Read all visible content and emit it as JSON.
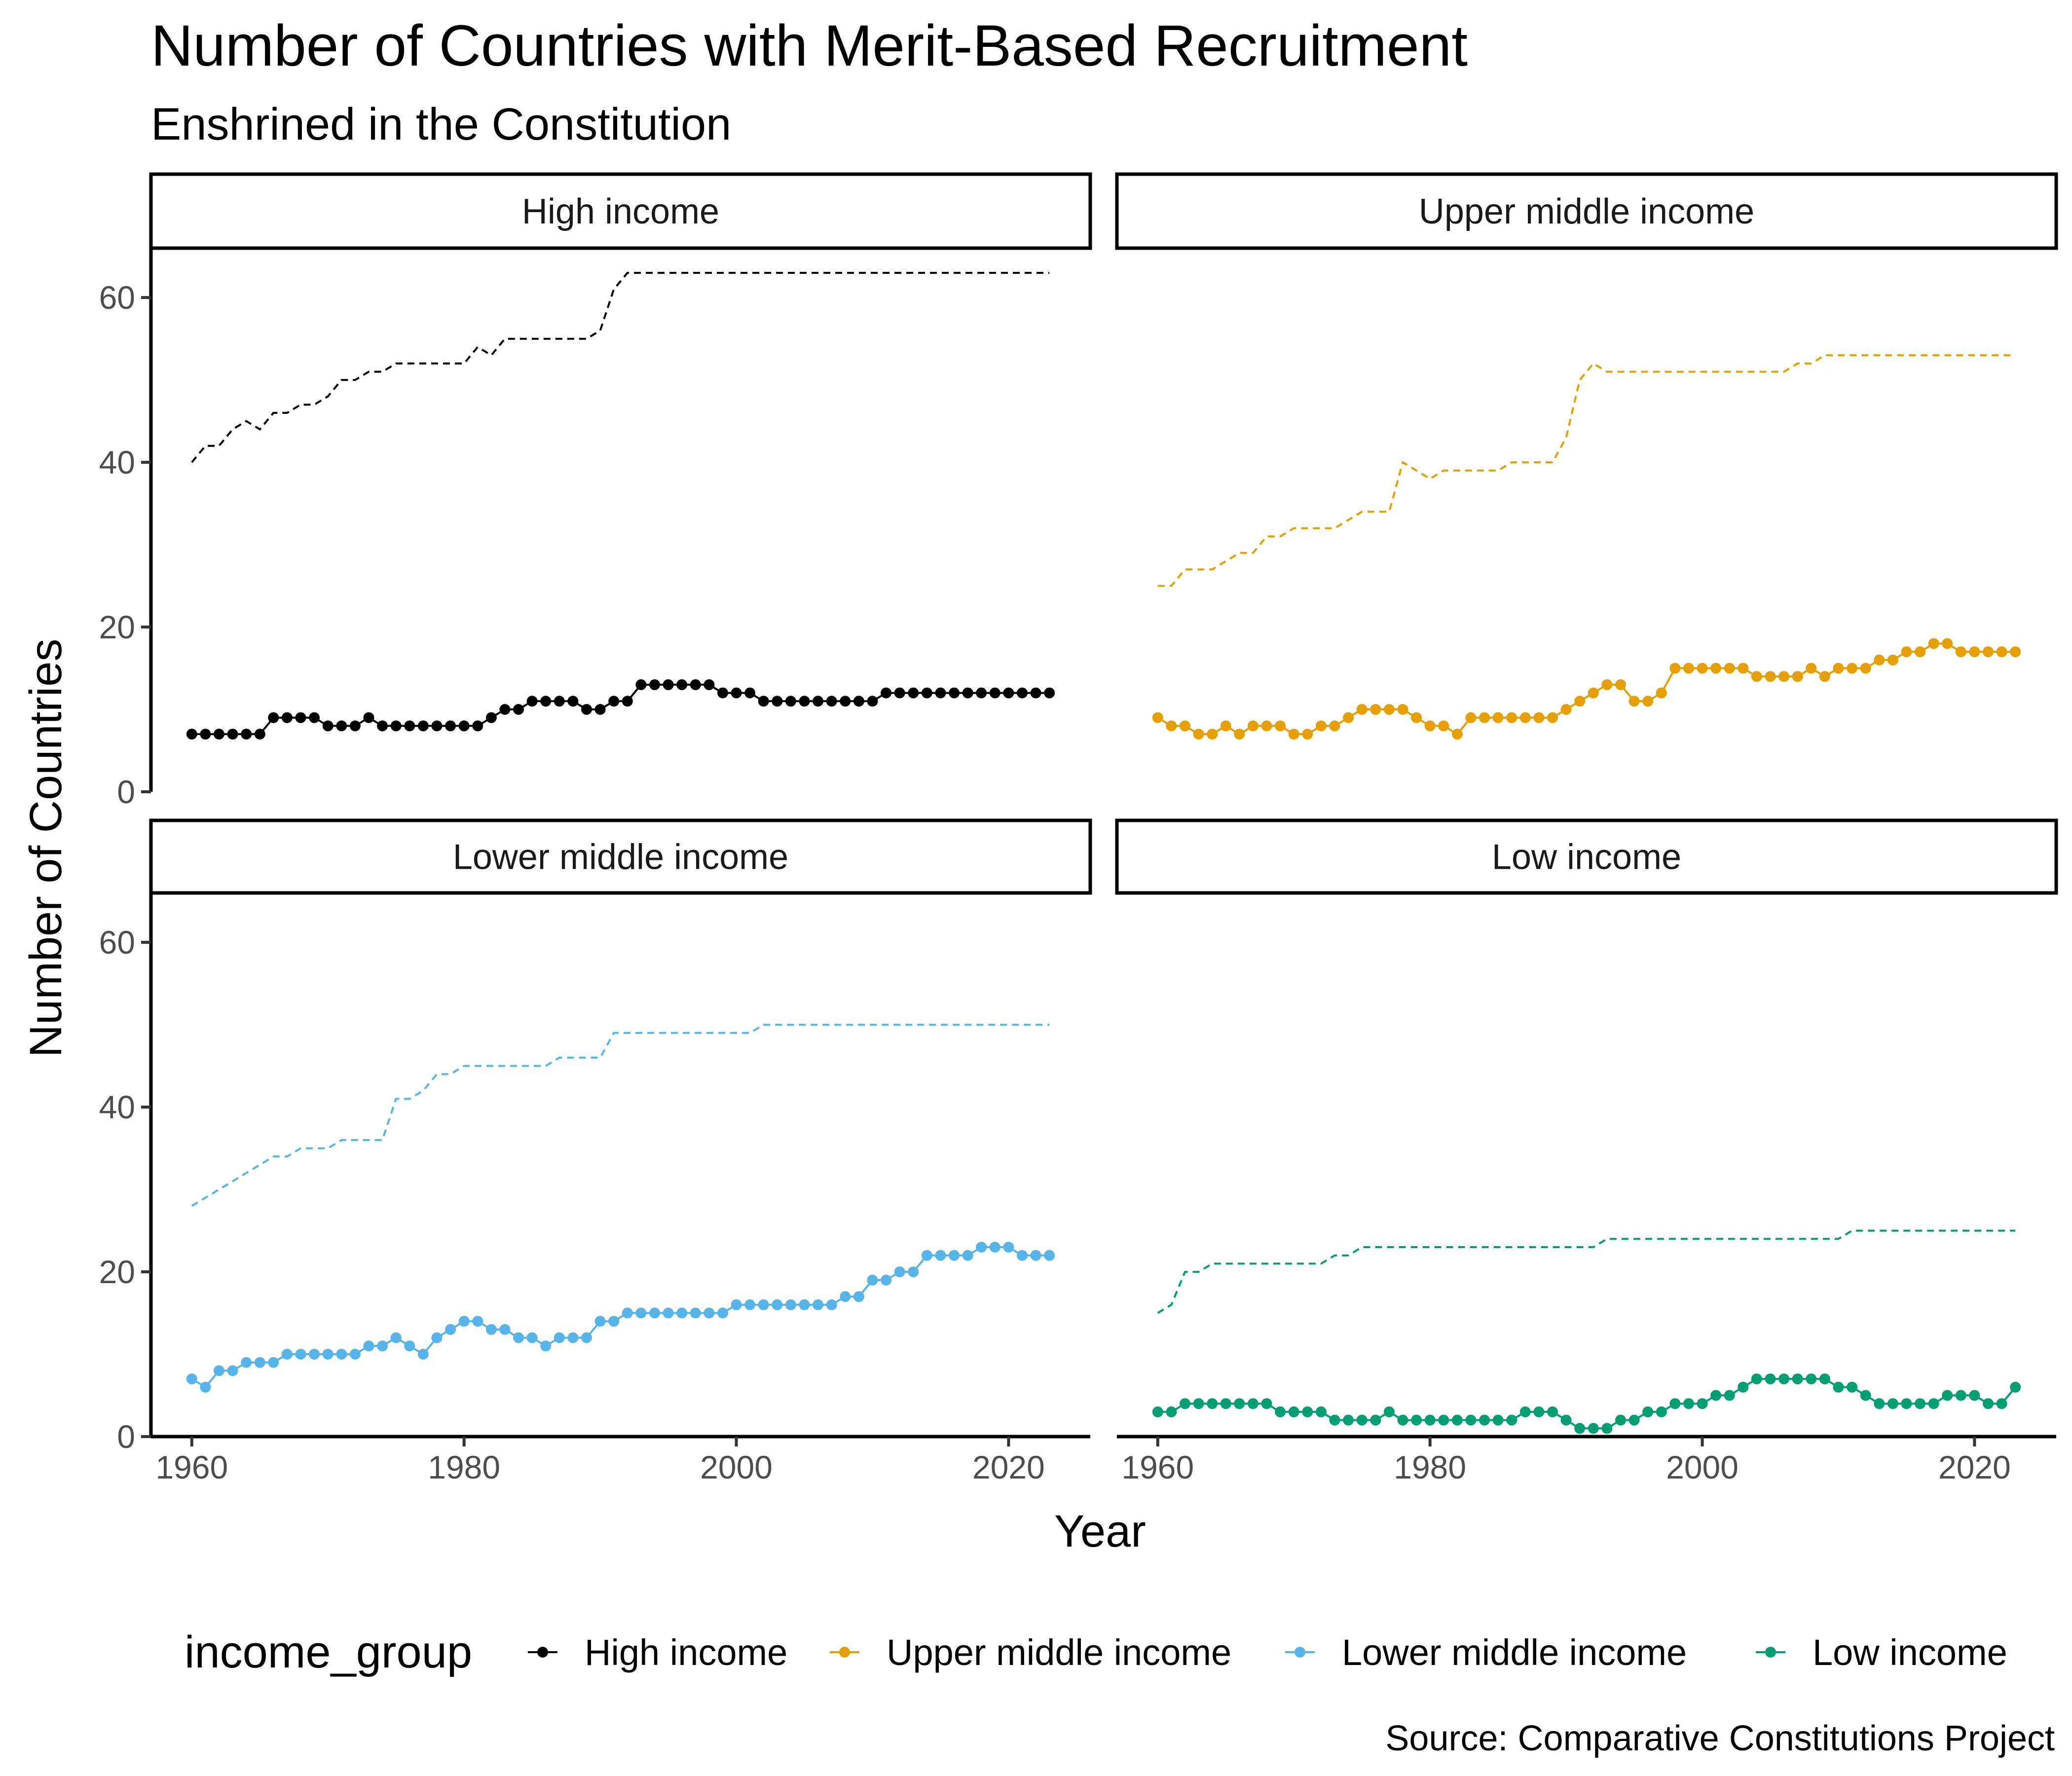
{
  "chart_data": {
    "type": "line",
    "title": "Number of Countries with Merit-Based Recruitment",
    "subtitle": "Enshrined in the Constitution",
    "xlabel": "Year",
    "ylabel": "Number of Countries",
    "caption": "Source: Comparative Constitutions Project",
    "legend_title": "income_group",
    "legend_position": "bottom",
    "grid": false,
    "xlim": [
      1957,
      2026
    ],
    "ylim": [
      0,
      66
    ],
    "x_ticks": [
      1960,
      1980,
      2000,
      2020
    ],
    "y_ticks": [
      0,
      20,
      40,
      60
    ],
    "x": [
      1960,
      1961,
      1962,
      1963,
      1964,
      1965,
      1966,
      1967,
      1968,
      1969,
      1970,
      1971,
      1972,
      1973,
      1974,
      1975,
      1976,
      1977,
      1978,
      1979,
      1980,
      1981,
      1982,
      1983,
      1984,
      1985,
      1986,
      1987,
      1988,
      1989,
      1990,
      1991,
      1992,
      1993,
      1994,
      1995,
      1996,
      1997,
      1998,
      1999,
      2000,
      2001,
      2002,
      2003,
      2004,
      2005,
      2006,
      2007,
      2008,
      2009,
      2010,
      2011,
      2012,
      2013,
      2014,
      2015,
      2016,
      2017,
      2018,
      2019,
      2020,
      2021,
      2022,
      2023
    ],
    "series": [
      {
        "name": "High income",
        "color": "#000000",
        "values": [
          7,
          7,
          7,
          7,
          7,
          7,
          9,
          9,
          9,
          9,
          8,
          8,
          8,
          9,
          8,
          8,
          8,
          8,
          8,
          8,
          8,
          8,
          9,
          10,
          10,
          11,
          11,
          11,
          11,
          10,
          10,
          11,
          11,
          13,
          13,
          13,
          13,
          13,
          13,
          12,
          12,
          12,
          11,
          11,
          11,
          11,
          11,
          11,
          11,
          11,
          11,
          12,
          12,
          12,
          12,
          12,
          12,
          12,
          12,
          12,
          12,
          12,
          12,
          12
        ],
        "totals": [
          40,
          42,
          42,
          44,
          45,
          44,
          46,
          46,
          47,
          47,
          48,
          50,
          50,
          51,
          51,
          52,
          52,
          52,
          52,
          52,
          52,
          54,
          53,
          55,
          55,
          55,
          55,
          55,
          55,
          55,
          56,
          61,
          63,
          63,
          63,
          63,
          63,
          63,
          63,
          63,
          63,
          63,
          63,
          63,
          63,
          63,
          63,
          63,
          63,
          63,
          63,
          63,
          63,
          63,
          63,
          63,
          63,
          63,
          63,
          63,
          63,
          63,
          63,
          63
        ]
      },
      {
        "name": "Upper middle income",
        "color": "#E69F00",
        "values": [
          9,
          8,
          8,
          7,
          7,
          8,
          7,
          8,
          8,
          8,
          7,
          7,
          8,
          8,
          9,
          10,
          10,
          10,
          10,
          9,
          8,
          8,
          7,
          9,
          9,
          9,
          9,
          9,
          9,
          9,
          10,
          11,
          12,
          13,
          13,
          11,
          11,
          12,
          15,
          15,
          15,
          15,
          15,
          15,
          14,
          14,
          14,
          14,
          15,
          14,
          15,
          15,
          15,
          16,
          16,
          17,
          17,
          18,
          18,
          17,
          17,
          17,
          17,
          17
        ],
        "totals": [
          25,
          25,
          27,
          27,
          27,
          28,
          29,
          29,
          31,
          31,
          32,
          32,
          32,
          32,
          33,
          34,
          34,
          34,
          40,
          39,
          38,
          39,
          39,
          39,
          39,
          39,
          40,
          40,
          40,
          40,
          43,
          50,
          52,
          51,
          51,
          51,
          51,
          51,
          51,
          51,
          51,
          51,
          51,
          51,
          51,
          51,
          51,
          52,
          52,
          53,
          53,
          53,
          53,
          53,
          53,
          53,
          53,
          53,
          53,
          53,
          53,
          53,
          53,
          53
        ]
      },
      {
        "name": "Lower middle income",
        "color": "#56B4E9",
        "values": [
          7,
          6,
          8,
          8,
          9,
          9,
          9,
          10,
          10,
          10,
          10,
          10,
          10,
          11,
          11,
          12,
          11,
          10,
          12,
          13,
          14,
          14,
          13,
          13,
          12,
          12,
          11,
          12,
          12,
          12,
          14,
          14,
          15,
          15,
          15,
          15,
          15,
          15,
          15,
          15,
          16,
          16,
          16,
          16,
          16,
          16,
          16,
          16,
          17,
          17,
          19,
          19,
          20,
          20,
          22,
          22,
          22,
          22,
          23,
          23,
          23,
          22,
          22,
          22
        ],
        "totals": [
          28,
          29,
          30,
          31,
          32,
          33,
          34,
          34,
          35,
          35,
          35,
          36,
          36,
          36,
          36,
          41,
          41,
          42,
          44,
          44,
          45,
          45,
          45,
          45,
          45,
          45,
          45,
          46,
          46,
          46,
          46,
          49,
          49,
          49,
          49,
          49,
          49,
          49,
          49,
          49,
          49,
          49,
          50,
          50,
          50,
          50,
          50,
          50,
          50,
          50,
          50,
          50,
          50,
          50,
          50,
          50,
          50,
          50,
          50,
          50,
          50,
          50,
          50,
          50
        ]
      },
      {
        "name": "Low income",
        "color": "#009E73",
        "values": [
          3,
          3,
          4,
          4,
          4,
          4,
          4,
          4,
          4,
          3,
          3,
          3,
          3,
          2,
          2,
          2,
          2,
          3,
          2,
          2,
          2,
          2,
          2,
          2,
          2,
          2,
          2,
          3,
          3,
          3,
          2,
          1,
          1,
          1,
          2,
          2,
          3,
          3,
          4,
          4,
          4,
          5,
          5,
          6,
          7,
          7,
          7,
          7,
          7,
          7,
          6,
          6,
          5,
          4,
          4,
          4,
          4,
          4,
          5,
          5,
          5,
          4,
          4,
          6
        ],
        "totals": [
          15,
          16,
          20,
          20,
          21,
          21,
          21,
          21,
          21,
          21,
          21,
          21,
          21,
          22,
          22,
          23,
          23,
          23,
          23,
          23,
          23,
          23,
          23,
          23,
          23,
          23,
          23,
          23,
          23,
          23,
          23,
          23,
          23,
          24,
          24,
          24,
          24,
          24,
          24,
          24,
          24,
          24,
          24,
          24,
          24,
          24,
          24,
          24,
          24,
          24,
          24,
          25,
          25,
          25,
          25,
          25,
          25,
          25,
          25,
          25,
          25,
          25,
          25,
          25
        ]
      }
    ]
  }
}
